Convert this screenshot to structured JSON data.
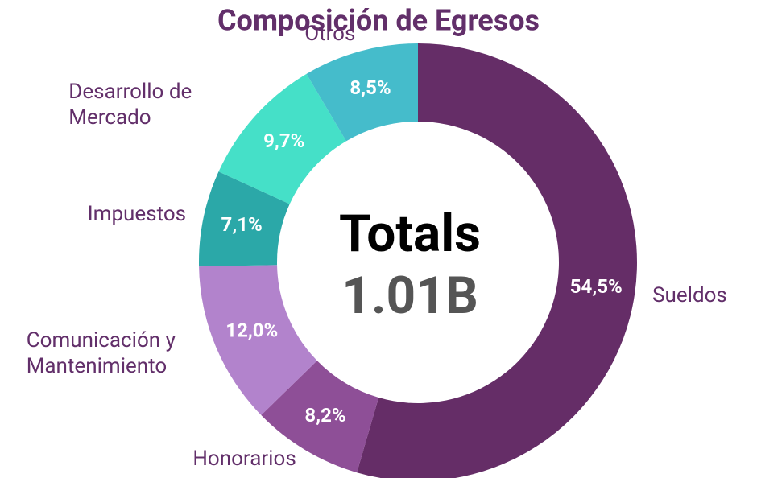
{
  "chart_data": {
    "type": "donut",
    "title": "Composición de Egresos",
    "categories": [
      "Sueldos",
      "Honorarios",
      "Comunicación y Mantenimiento",
      "Impuestos",
      "Desarrollo de Mercado",
      "Otros"
    ],
    "values": [
      54.5,
      8.2,
      12.0,
      7.1,
      9.7,
      8.5
    ],
    "value_labels": [
      "54,5%",
      "8,2%",
      "12,0%",
      "7,1%",
      "9,7%",
      "8,5%"
    ],
    "colors": [
      "#652d67",
      "#8e4f97",
      "#b283cc",
      "#2ba8a8",
      "#45e0c8",
      "#45bccb"
    ],
    "center_label": "Totals",
    "center_value": "1.01B"
  }
}
